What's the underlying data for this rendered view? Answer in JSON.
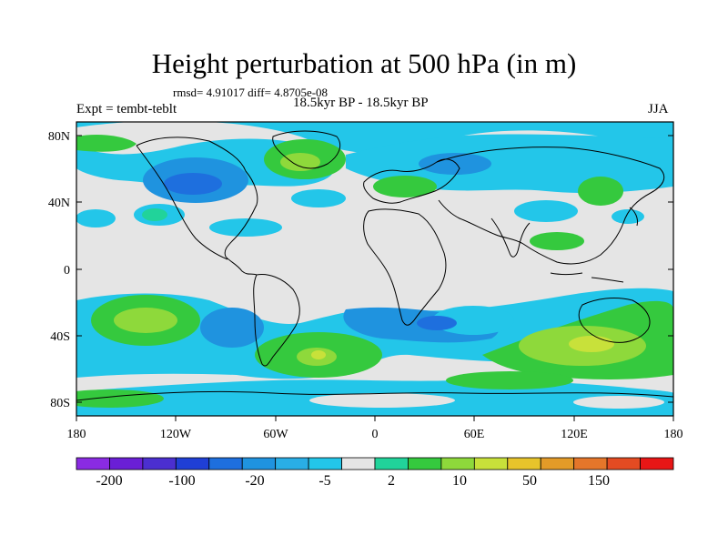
{
  "title": "Height perturbation at 500 hPa (in m)",
  "stats": "rmsd= 4.91017 diff= 4.8705e-08",
  "experiment": "Expt = tembt-teblt",
  "period": "18.5kyr BP - 18.5kyr BP",
  "season": "JJA",
  "lat_ticks": [
    "80N",
    "40N",
    "0",
    "40S",
    "80S"
  ],
  "lon_ticks": [
    "180",
    "120W",
    "60W",
    "0",
    "60E",
    "120E",
    "180"
  ],
  "colorbar": {
    "labels": [
      "-200",
      "-100",
      "-20",
      "-5",
      "2",
      "10",
      "50",
      "150"
    ],
    "colors": [
      "#8a2be2",
      "#6a1fd6",
      "#4b2fd0",
      "#1f3fd6",
      "#1e6fde",
      "#1f93df",
      "#29aee6",
      "#23c6e9",
      "#e5e5e5",
      "#21d39a",
      "#35c93e",
      "#8ed93b",
      "#c8e13a",
      "#e7c42b",
      "#e39b28",
      "#e5762a",
      "#e44b22",
      "#e81616"
    ]
  },
  "map": {
    "background": "#e5e5e5",
    "land_outline": "#000000"
  }
}
